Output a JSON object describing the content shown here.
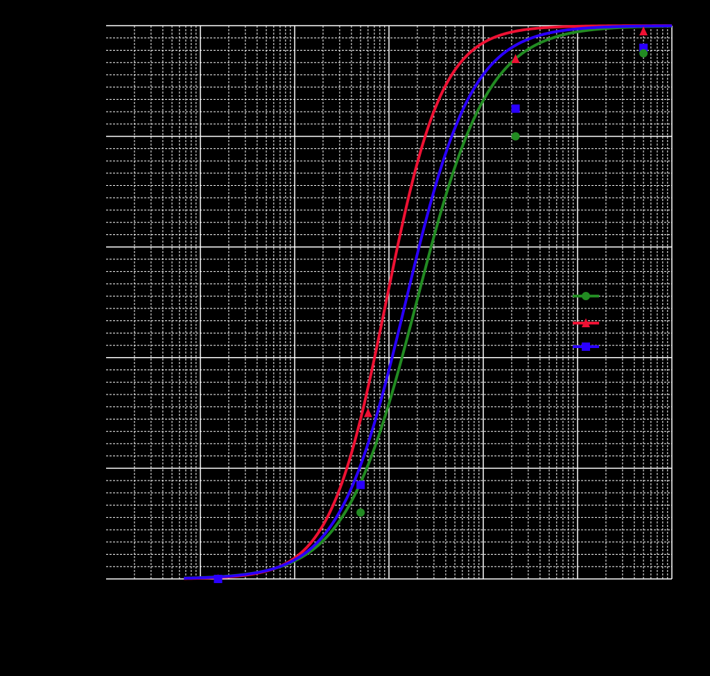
{
  "chart_data": {
    "type": "line",
    "title": "",
    "xlabel": "",
    "ylabel": "",
    "x_scale": "log",
    "xlim": [
      0.001,
      1000
    ],
    "ylim": [
      0,
      1
    ],
    "grid": true,
    "legend_position": "right",
    "background_color": "#000000",
    "grid_color": "#ffffff",
    "series": [
      {
        "color": "#228b22",
        "marker": "circle",
        "curve": {
          "form": "log-logistic",
          "midpoint": 1.96,
          "slope": 1.14
        },
        "x": [
          0.0154,
          0.5,
          22.0
        ],
        "y": [
          0.0,
          0.12,
          0.8
        ]
      },
      {
        "color": "#ee1133",
        "marker": "triangle",
        "curve": {
          "form": "log-logistic",
          "midpoint": 0.93,
          "slope": 1.45
        },
        "x": [
          0.0154,
          0.6,
          22.0
        ],
        "y": [
          0.0,
          0.3,
          0.94
        ]
      },
      {
        "color": "#2a00ff",
        "marker": "square",
        "curve": {
          "form": "log-logistic",
          "midpoint": 1.5,
          "slope": 1.23
        },
        "x": [
          0.0154,
          0.5,
          22.0
        ],
        "y": [
          0.0,
          0.17,
          0.85
        ]
      }
    ],
    "end_markers": [
      {
        "color": "#ee1133",
        "marker": "triangle",
        "x": 500,
        "y": 0.99
      },
      {
        "color": "#2a00ff",
        "marker": "square",
        "x": 500,
        "y": 0.96
      },
      {
        "color": "#228b22",
        "marker": "circle",
        "x": 500,
        "y": 0.95
      }
    ]
  }
}
